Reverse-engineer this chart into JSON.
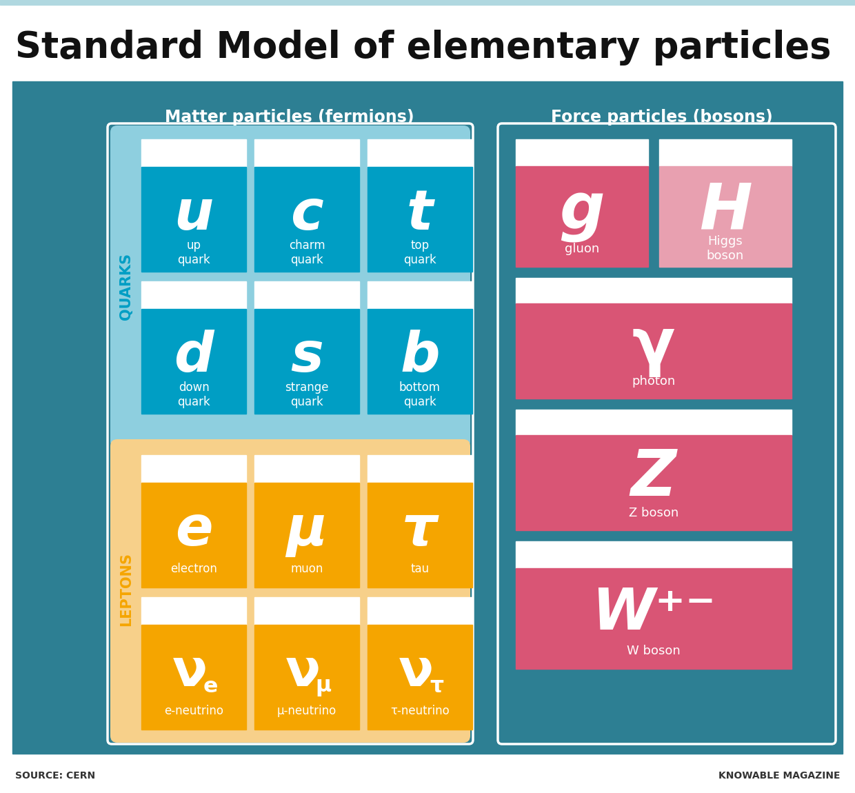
{
  "title": "Standard Model of elementary particles",
  "subtitle_fermions": "Matter particles (fermions)",
  "subtitle_bosons": "Force particles (bosons)",
  "source_left": "SOURCE: CERN",
  "source_right": "KNOWABLE MAGAZINE",
  "bg_color": "#2d7f93",
  "white_bg": "#ffffff",
  "top_bar_color": "#b0d8e0",
  "title_color": "#111111",
  "quarks_bg": "#8ecfdf",
  "leptons_bg": "#f7d08a",
  "quark_cell_color": "#009ec4",
  "lepton_cell_color": "#f5a500",
  "boson_gluon_color": "#d95575",
  "boson_higgs_color": "#e8a0b0",
  "boson_photon_color": "#d95575",
  "boson_z_color": "#d95575",
  "boson_w_color": "#d95575",
  "quarks_label_color": "#009ec4",
  "leptons_label_color": "#f5a500",
  "quarks": [
    {
      "symbol": "u",
      "name": "up\nquark"
    },
    {
      "symbol": "c",
      "name": "charm\nquark"
    },
    {
      "symbol": "t",
      "name": "top\nquark"
    },
    {
      "symbol": "d",
      "name": "down\nquark"
    },
    {
      "symbol": "s",
      "name": "strange\nquark"
    },
    {
      "symbol": "b",
      "name": "bottom\nquark"
    }
  ],
  "leptons_row1": [
    {
      "symbol": "e",
      "name": "electron",
      "sub": null
    },
    {
      "symbol": "μ",
      "name": "muon",
      "sub": null
    },
    {
      "symbol": "τ",
      "name": "tau",
      "sub": null
    }
  ],
  "leptons_row2": [
    {
      "sym_base": "ν",
      "sym_sub": "e",
      "name": "e-neutrino"
    },
    {
      "sym_base": "ν",
      "sym_sub": "μ",
      "name": "μ-neutrino"
    },
    {
      "sym_base": "ν",
      "sym_sub": "τ",
      "name": "τ-neutrino"
    }
  ],
  "bosons_row1": [
    {
      "symbol": "g",
      "name": "gluon",
      "color": "#d95575"
    },
    {
      "symbol": "H",
      "name": "Higgs\nboson",
      "color": "#e8a0b0"
    }
  ],
  "bosons_singles": [
    {
      "symbol": "γ",
      "name": "photon",
      "color": "#d95575"
    },
    {
      "symbol": "Z",
      "name": "Z boson",
      "color": "#d95575"
    },
    {
      "symbol": "W⁺⁻",
      "name": "W boson",
      "color": "#d95575"
    }
  ]
}
